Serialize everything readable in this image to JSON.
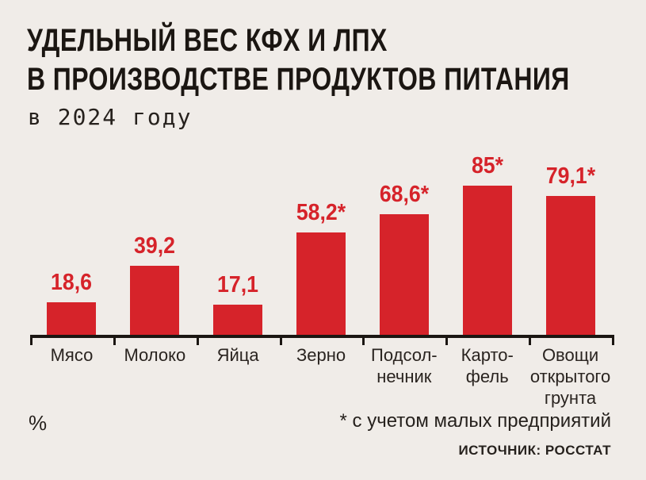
{
  "header": {
    "title_line1": "УДЕЛЬНЫЙ ВЕС КФХ И ЛПХ",
    "title_line2": "В ПРОИЗВОДСТВЕ ПРОДУКТОВ ПИТАНИЯ",
    "subtitle": "в 2024 году"
  },
  "chart_data": {
    "type": "bar",
    "title": "Удельный вес КФХ и ЛПХ в производстве продуктов питания в 2024 году",
    "unit": "%",
    "categories": [
      "Мясо",
      "Молоко",
      "Яйца",
      "Зерно",
      "Подсолнечник",
      "Картофель",
      "Овощи открытого грунта"
    ],
    "category_label_lines": [
      [
        "Мясо"
      ],
      [
        "Молоко"
      ],
      [
        "Яйца"
      ],
      [
        "Зерно"
      ],
      [
        "Подсол-",
        "нечник"
      ],
      [
        "Карто-",
        "фель"
      ],
      [
        "Овощи",
        "открытого",
        "грунта"
      ]
    ],
    "values": [
      18.6,
      39.2,
      17.1,
      58.2,
      68.6,
      85,
      79.1
    ],
    "value_labels": [
      "18,6",
      "39,2",
      "17,1",
      "58,2*",
      "68,6*",
      "85*",
      "79,1*"
    ],
    "starred": [
      false,
      false,
      false,
      true,
      true,
      true,
      true
    ],
    "ylim": [
      0,
      100
    ],
    "grid": false,
    "legend": "none",
    "bar_color": "#d6232a"
  },
  "footer": {
    "unit_label": "%",
    "footnote": "* с учетом малых предприятий",
    "source": "ИСТОЧНИК: РОССТАТ"
  },
  "colors": {
    "background": "#f0ece8",
    "bar_red": "#d6232a",
    "title_text": "#1b1612",
    "label_text": "#2a2420",
    "axis": "#1b1612"
  }
}
